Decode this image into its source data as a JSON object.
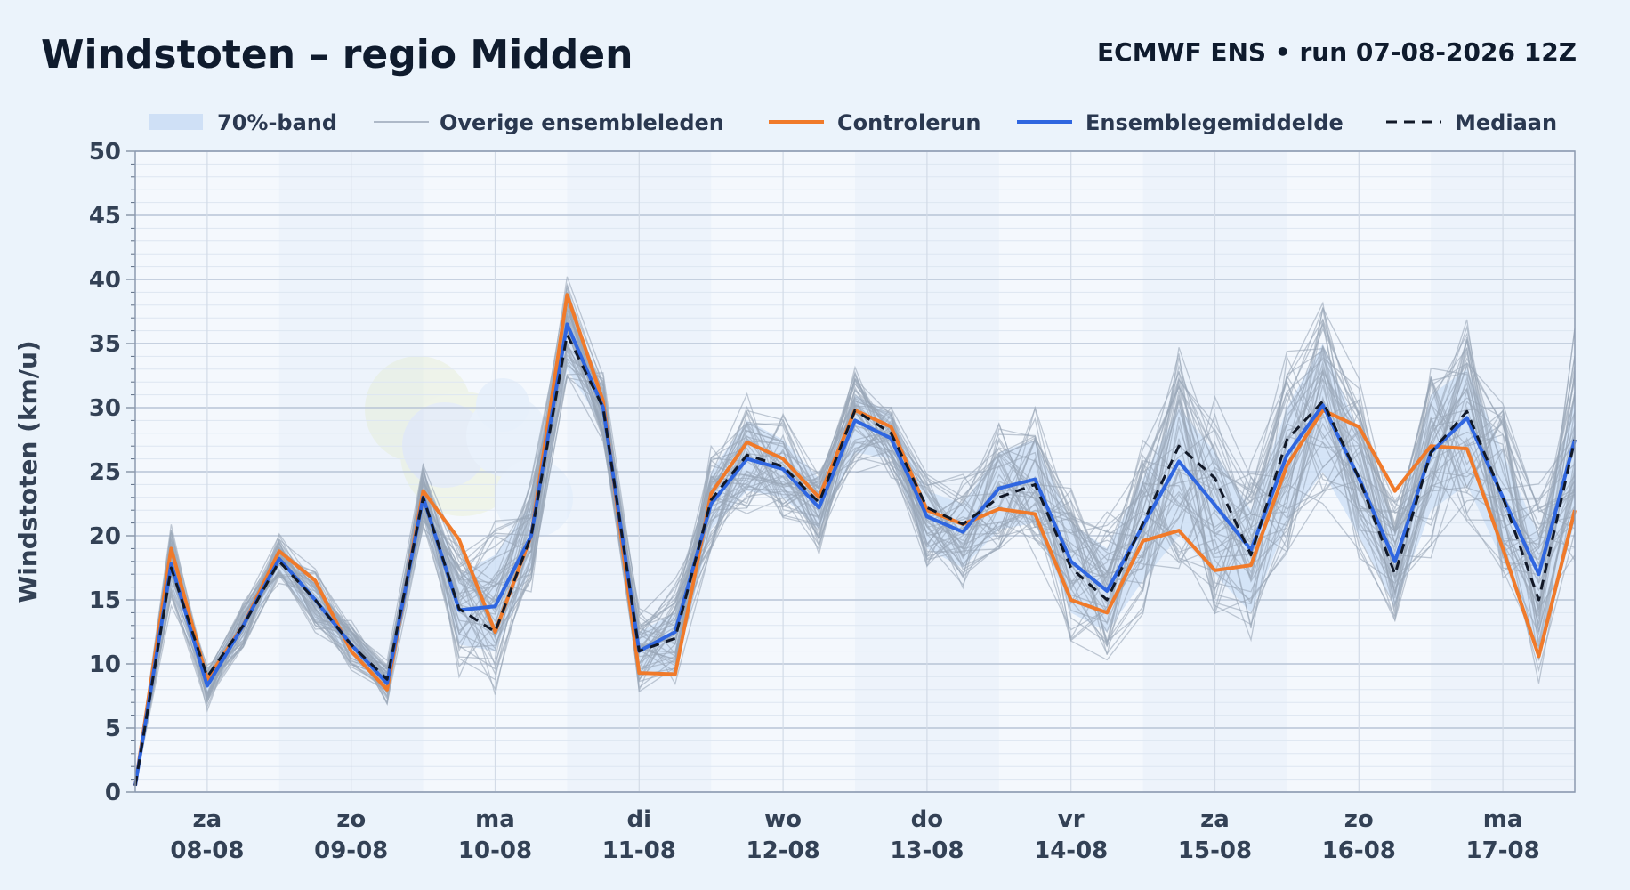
{
  "header": {
    "title": "Windstoten – regio Midden",
    "subtitle": "ECMWF ENS • run 07-08-2026 12Z"
  },
  "legend": [
    {
      "label": "70%-band",
      "kind": "band",
      "color": "#cfe0f6"
    },
    {
      "label": "Overige ensembleleden",
      "kind": "thin",
      "color": "#9aa6b8"
    },
    {
      "label": "Controlerun",
      "kind": "line",
      "color": "#f07a2a"
    },
    {
      "label": "Ensemblegemiddelde",
      "kind": "line",
      "color": "#2f66e0"
    },
    {
      "label": "Mediaan",
      "kind": "dashed",
      "color": "#111827"
    }
  ],
  "chart_data": {
    "type": "line",
    "title": "Windstoten – regio Midden",
    "ylabel": "Windstoten (km/u)",
    "xlabel": "",
    "ylim": [
      0,
      50
    ],
    "y_ticks": [
      0,
      5,
      10,
      15,
      20,
      25,
      30,
      35,
      40,
      45,
      50
    ],
    "x_range_hours": [
      0,
      240
    ],
    "x_ticks": [
      {
        "hour": 12,
        "day": "za",
        "date": "08-08"
      },
      {
        "hour": 36,
        "day": "zo",
        "date": "09-08"
      },
      {
        "hour": 60,
        "day": "ma",
        "date": "10-08"
      },
      {
        "hour": 84,
        "day": "di",
        "date": "11-08"
      },
      {
        "hour": 108,
        "day": "wo",
        "date": "12-08"
      },
      {
        "hour": 132,
        "day": "do",
        "date": "13-08"
      },
      {
        "hour": 156,
        "day": "vr",
        "date": "14-08"
      },
      {
        "hour": 180,
        "day": "za",
        "date": "15-08"
      },
      {
        "hour": 204,
        "day": "zo",
        "date": "16-08"
      },
      {
        "hour": 228,
        "day": "ma",
        "date": "17-08"
      }
    ],
    "x_hours": [
      0,
      6,
      12,
      18,
      24,
      30,
      36,
      42,
      48,
      54,
      60,
      66,
      72,
      78,
      84,
      90,
      96,
      102,
      108,
      114,
      120,
      126,
      132,
      138,
      144,
      150,
      156,
      162,
      168,
      174,
      180,
      186,
      192,
      198,
      204,
      210,
      216,
      222,
      228,
      234,
      240
    ],
    "series": [
      {
        "name": "Controlerun",
        "color": "#f07a2a",
        "values": [
          0.5,
          19.0,
          8.8,
          13.0,
          18.8,
          16.5,
          11.0,
          8.0,
          23.5,
          19.7,
          12.5,
          20.0,
          38.8,
          30.5,
          9.3,
          9.2,
          23.3,
          27.3,
          26.0,
          23.0,
          29.8,
          28.5,
          22.0,
          20.9,
          22.1,
          21.7,
          15.0,
          14.0,
          19.6,
          20.4,
          17.3,
          17.7,
          25.5,
          29.8,
          28.5,
          23.5,
          27.0,
          26.8,
          19.0,
          10.6,
          22.0
        ]
      },
      {
        "name": "Ensemblegemiddelde",
        "color": "#2f66e0",
        "values": [
          0.5,
          17.8,
          8.3,
          13.0,
          18.2,
          15.0,
          11.5,
          8.5,
          23.0,
          14.2,
          14.5,
          20.0,
          36.5,
          30.0,
          11.0,
          12.5,
          22.5,
          26.0,
          25.2,
          22.2,
          29.0,
          27.6,
          21.5,
          20.3,
          23.7,
          24.4,
          18.0,
          15.7,
          20.8,
          25.8,
          22.4,
          18.9,
          26.3,
          30.2,
          24.5,
          18.0,
          26.5,
          29.2,
          23.0,
          17.0,
          27.5
        ]
      },
      {
        "name": "Mediaan",
        "color": "#111827",
        "values": [
          0.5,
          17.5,
          9.0,
          13.0,
          18.0,
          15.0,
          11.5,
          8.8,
          23.0,
          14.3,
          12.5,
          20.0,
          35.7,
          30.0,
          11.0,
          12.0,
          22.8,
          26.3,
          25.4,
          22.6,
          29.8,
          28.0,
          22.2,
          20.9,
          23.0,
          24.0,
          17.5,
          15.0,
          21.0,
          27.0,
          24.5,
          18.5,
          27.5,
          30.5,
          24.5,
          17.0,
          26.5,
          29.7,
          23.0,
          15.0,
          27.5
        ]
      }
    ],
    "band_70": {
      "low": [
        0.5,
        16.0,
        7.5,
        12.0,
        17.0,
        13.5,
        10.5,
        7.5,
        21.5,
        11.5,
        11.0,
        17.5,
        33.0,
        28.5,
        9.0,
        9.5,
        20.5,
        23.5,
        23.0,
        20.5,
        26.5,
        26.0,
        19.0,
        17.5,
        20.5,
        21.0,
        14.0,
        12.5,
        16.5,
        20.0,
        17.0,
        14.0,
        21.0,
        25.0,
        20.0,
        14.5,
        22.0,
        24.0,
        18.0,
        11.0,
        21.0
      ],
      "high": [
        0.5,
        19.5,
        9.5,
        14.0,
        19.0,
        16.5,
        12.5,
        9.5,
        24.5,
        17.0,
        18.5,
        22.5,
        37.5,
        31.5,
        12.5,
        14.0,
        25.0,
        29.0,
        27.5,
        24.5,
        31.0,
        29.5,
        23.5,
        22.5,
        26.5,
        27.5,
        21.0,
        19.0,
        24.5,
        30.0,
        26.5,
        22.0,
        30.0,
        35.0,
        28.0,
        20.5,
        31.0,
        33.0,
        26.5,
        20.0,
        31.0
      ]
    },
    "legend_position": "top",
    "grid": true
  }
}
